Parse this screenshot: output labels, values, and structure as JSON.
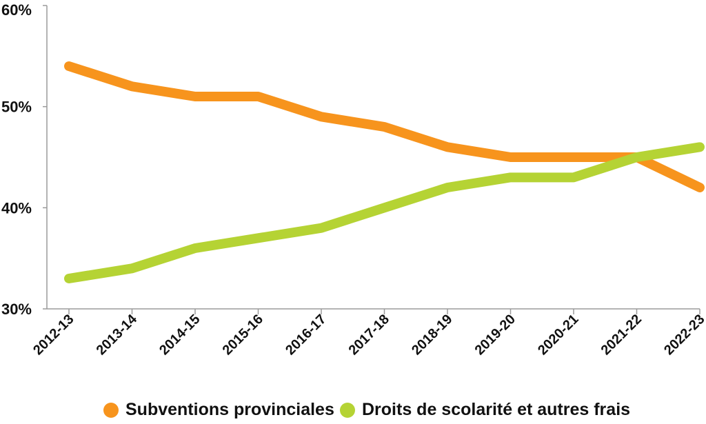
{
  "chart_data": {
    "type": "line",
    "categories": [
      "2012-13",
      "2013-14",
      "2014-15",
      "2015-16",
      "2016-17",
      "2017-18",
      "2018-19",
      "2019-20",
      "2020-21",
      "2021-22",
      "2022-23"
    ],
    "series": [
      {
        "name": "Subventions provinciales",
        "color": "#f7941d",
        "values": [
          54,
          52,
          51,
          51,
          49,
          48,
          46,
          45,
          45,
          45,
          42
        ]
      },
      {
        "name": "Droits de scolarité et autres frais",
        "color": "#b5d334",
        "values": [
          33,
          34,
          36,
          37,
          38,
          40,
          42,
          43,
          43,
          45,
          46
        ]
      }
    ],
    "yticks": [
      "30%",
      "40%",
      "50%",
      "60%"
    ],
    "ylim": [
      30,
      60
    ],
    "grid": false,
    "legend_position": "bottom"
  }
}
